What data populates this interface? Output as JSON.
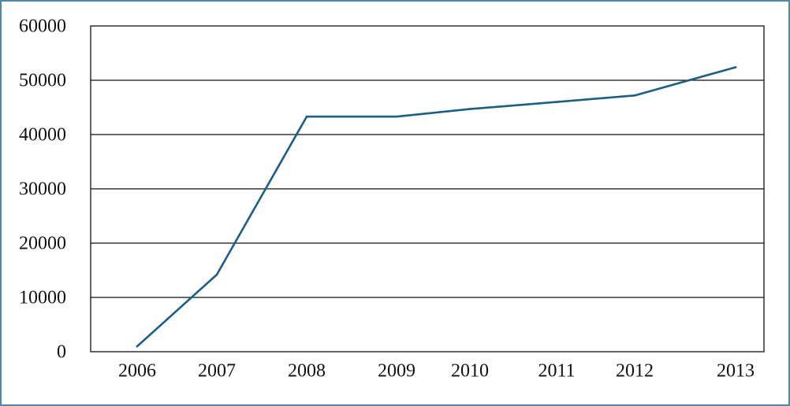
{
  "chart_data": {
    "type": "line",
    "x": [
      "2006",
      "2007",
      "2008",
      "2009",
      "2010",
      "2011",
      "2012",
      "2013"
    ],
    "series": [
      {
        "values": [
          1000,
          14200,
          43300,
          43300,
          44700,
          46000,
          47200,
          52400
        ]
      }
    ],
    "ylim": [
      0,
      60000
    ],
    "yticks": [
      "0",
      "10000",
      "20000",
      "30000",
      "40000",
      "50000",
      "60000"
    ],
    "grid": "horizontal",
    "line_color": "#1a5f87",
    "gridline_color": "#111111"
  }
}
